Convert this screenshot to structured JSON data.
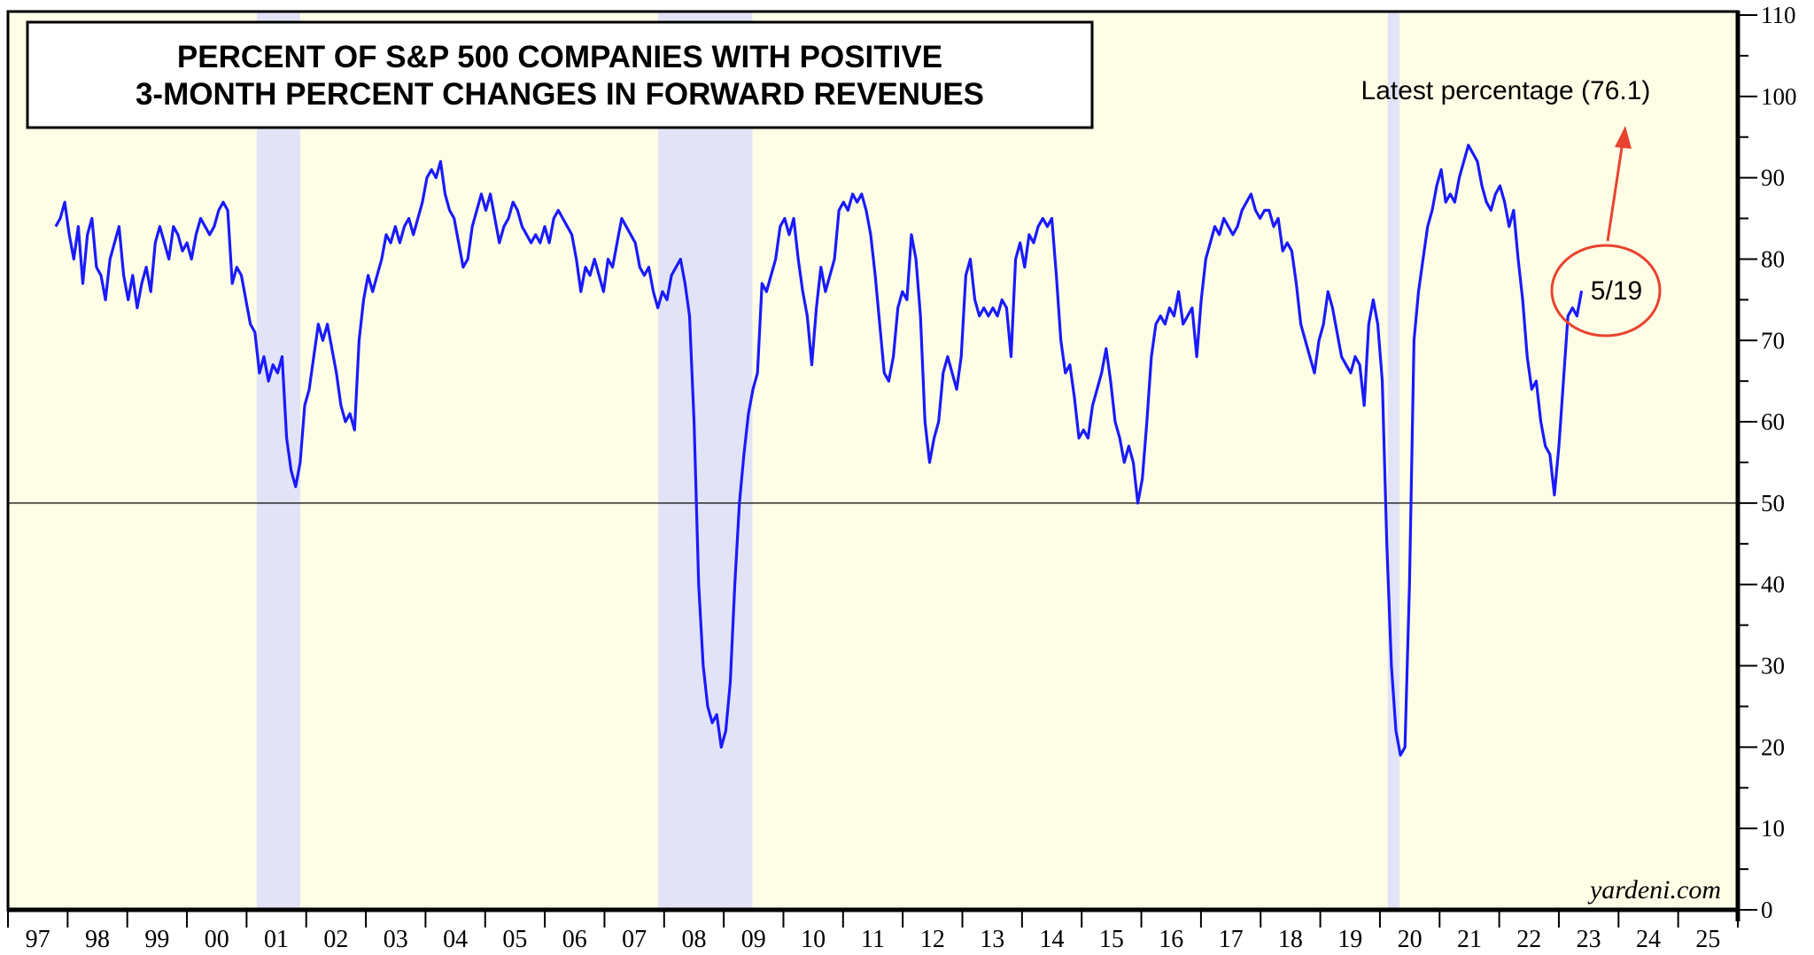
{
  "chart_data": {
    "type": "line",
    "title_lines": [
      "PERCENT OF S&P 500 COMPANIES WITH POSITIVE",
      "3-MONTH PERCENT CHANGES IN FORWARD REVENUES"
    ],
    "xlabel": "",
    "ylabel": "",
    "ylim": [
      0,
      110
    ],
    "xlim": [
      1997,
      2026
    ],
    "yticks": [
      0,
      10,
      20,
      30,
      40,
      50,
      60,
      70,
      80,
      90,
      100,
      110
    ],
    "xtick_labels": [
      "97",
      "98",
      "99",
      "00",
      "01",
      "02",
      "03",
      "04",
      "05",
      "06",
      "07",
      "08",
      "09",
      "10",
      "11",
      "12",
      "13",
      "14",
      "15",
      "16",
      "17",
      "18",
      "19",
      "20",
      "21",
      "22",
      "23",
      "24",
      "25"
    ],
    "reference_line": 50,
    "recessions": [
      [
        2001.17,
        2001.9
      ],
      [
        2007.9,
        2009.48
      ],
      [
        2020.13,
        2020.33
      ]
    ],
    "annotation": "Latest percentage (76.1)",
    "latest_label": "5/19",
    "credit": "yardeni.com",
    "colors": {
      "line": "#1a1aff",
      "background": "#fefee6",
      "recession": "#e3e3f7",
      "annotation": "#e8432e"
    },
    "series": [
      {
        "name": "Percent of S&P 500 companies with positive 3-month % change in forward revenues",
        "x_start": 1997.8,
        "x_end": 2023.38,
        "values": [
          84,
          85,
          87,
          83,
          80,
          84,
          77,
          83,
          85,
          79,
          78,
          75,
          80,
          82,
          84,
          78,
          75,
          78,
          74,
          77,
          79,
          76,
          82,
          84,
          82,
          80,
          84,
          83,
          81,
          82,
          80,
          83,
          85,
          84,
          83,
          84,
          86,
          87,
          86,
          77,
          79,
          78,
          75,
          72,
          71,
          66,
          68,
          65,
          67,
          66,
          68,
          58,
          54,
          52,
          55,
          62,
          64,
          68,
          72,
          70,
          72,
          69,
          66,
          62,
          60,
          61,
          59,
          70,
          75,
          78,
          76,
          78,
          80,
          83,
          82,
          84,
          82,
          84,
          85,
          83,
          85,
          87,
          90,
          91,
          90,
          92,
          88,
          86,
          85,
          82,
          79,
          80,
          84,
          86,
          88,
          86,
          88,
          85,
          82,
          84,
          85,
          87,
          86,
          84,
          83,
          82,
          83,
          82,
          84,
          82,
          85,
          86,
          85,
          84,
          83,
          80,
          76,
          79,
          78,
          80,
          78,
          76,
          80,
          79,
          82,
          85,
          84,
          83,
          82,
          79,
          78,
          79,
          76,
          74,
          76,
          75,
          78,
          79,
          80,
          77,
          73,
          60,
          40,
          30,
          25,
          23,
          24,
          20,
          22,
          28,
          40,
          50,
          56,
          61,
          64,
          66,
          77,
          76,
          78,
          80,
          84,
          85,
          83,
          85,
          80,
          76,
          73,
          67,
          74,
          79,
          76,
          78,
          80,
          86,
          87,
          86,
          88,
          87,
          88,
          86,
          83,
          78,
          72,
          66,
          65,
          68,
          74,
          76,
          75,
          83,
          80,
          73,
          60,
          55,
          58,
          60,
          66,
          68,
          66,
          64,
          68,
          78,
          80,
          75,
          73,
          74,
          73,
          74,
          73,
          75,
          74,
          68,
          80,
          82,
          79,
          83,
          82,
          84,
          85,
          84,
          85,
          78,
          70,
          66,
          67,
          63,
          58,
          59,
          58,
          62,
          64,
          66,
          69,
          65,
          60,
          58,
          55,
          57,
          55,
          50,
          53,
          60,
          68,
          72,
          73,
          72,
          74,
          73,
          76,
          72,
          73,
          74,
          68,
          75,
          80,
          82,
          84,
          83,
          85,
          84,
          83,
          84,
          86,
          87,
          88,
          86,
          85,
          86,
          86,
          84,
          85,
          81,
          82,
          81,
          77,
          72,
          70,
          68,
          66,
          70,
          72,
          76,
          74,
          71,
          68,
          67,
          66,
          68,
          67,
          62,
          72,
          75,
          72,
          65,
          45,
          30,
          22,
          19,
          20,
          40,
          70,
          76,
          80,
          84,
          86,
          89,
          91,
          87,
          88,
          87,
          90,
          92,
          94,
          93,
          92,
          89,
          87,
          86,
          88,
          89,
          87,
          84,
          86,
          80,
          75,
          68,
          64,
          65,
          60,
          57,
          56,
          51,
          57,
          65,
          73,
          74,
          73,
          76.1
        ]
      }
    ]
  }
}
